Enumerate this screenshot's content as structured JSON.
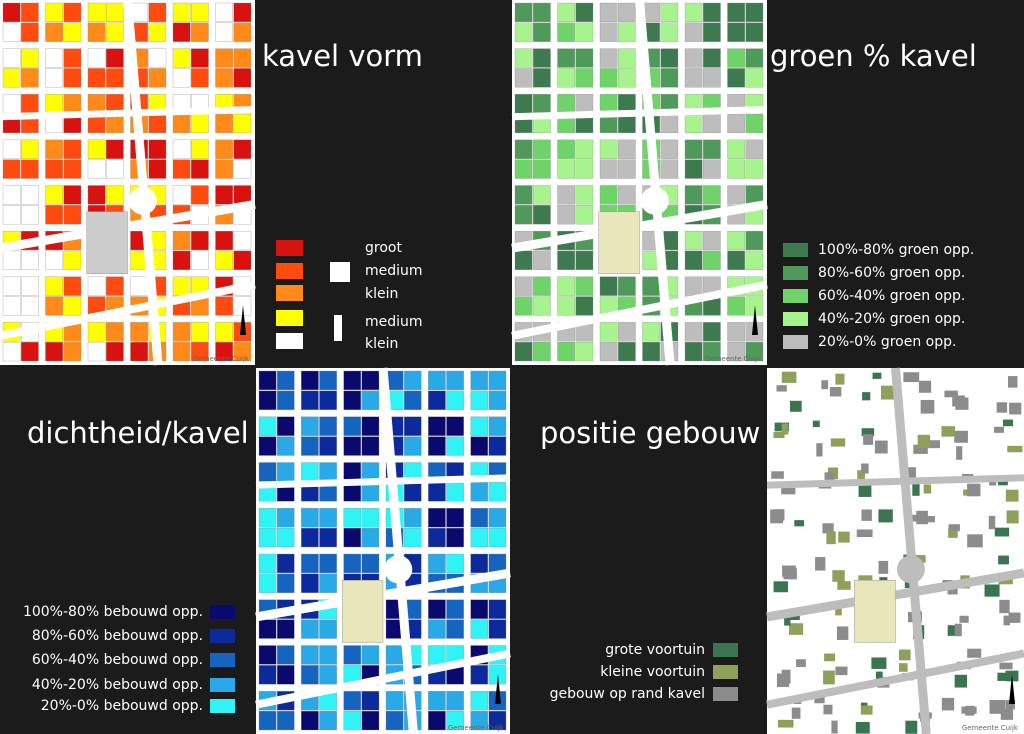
{
  "panels": [
    {
      "title": "kavel vorm",
      "credit": "Gemeente Cuijk",
      "legend": [
        {
          "label": "groot",
          "color": "#d7120f"
        },
        {
          "label": "medium",
          "color": "#ff4a10"
        },
        {
          "label": "klein",
          "color": "#ff8a1a"
        },
        {
          "label": "medium",
          "color": "#ffff00"
        },
        {
          "label": "klein",
          "color": "#ffffff"
        }
      ]
    },
    {
      "title": "groen % kavel",
      "credit": "Gemeente Cuijk",
      "legend": [
        {
          "label": "100%-80% groen opp.",
          "color": "#3d7a4f"
        },
        {
          "label": "80%-60% groen opp.",
          "color": "#4f9a5b"
        },
        {
          "label": "60%-40% groen opp.",
          "color": "#6fd36a"
        },
        {
          "label": "40%-20% groen opp.",
          "color": "#a7f48e"
        },
        {
          "label": "20%-0% groen opp.",
          "color": "#bdbdbd"
        }
      ]
    },
    {
      "title": "dichtheid/kavel",
      "credit": "Gemeente Cuijk",
      "legend": [
        {
          "label": "100%-80% bebouwd opp.",
          "color": "#0a0a6e"
        },
        {
          "label": "80%-60% bebouwd opp.",
          "color": "#0d2a9c"
        },
        {
          "label": "60%-40% bebouwd opp.",
          "color": "#1565c0"
        },
        {
          "label": "40%-20% bebouwd opp.",
          "color": "#29a9e6"
        },
        {
          "label": "20%-0% bebouwd opp.",
          "color": "#2ff3f5"
        }
      ]
    },
    {
      "title": "positie gebouw",
      "credit": "Gemeente Cuijk",
      "legend": [
        {
          "label": "grote voortuin",
          "color": "#3a7550"
        },
        {
          "label": "kleine voortuin",
          "color": "#8ea05a"
        },
        {
          "label": "gebouw op rand kavel",
          "color": "#8c8c8c"
        }
      ]
    }
  ]
}
